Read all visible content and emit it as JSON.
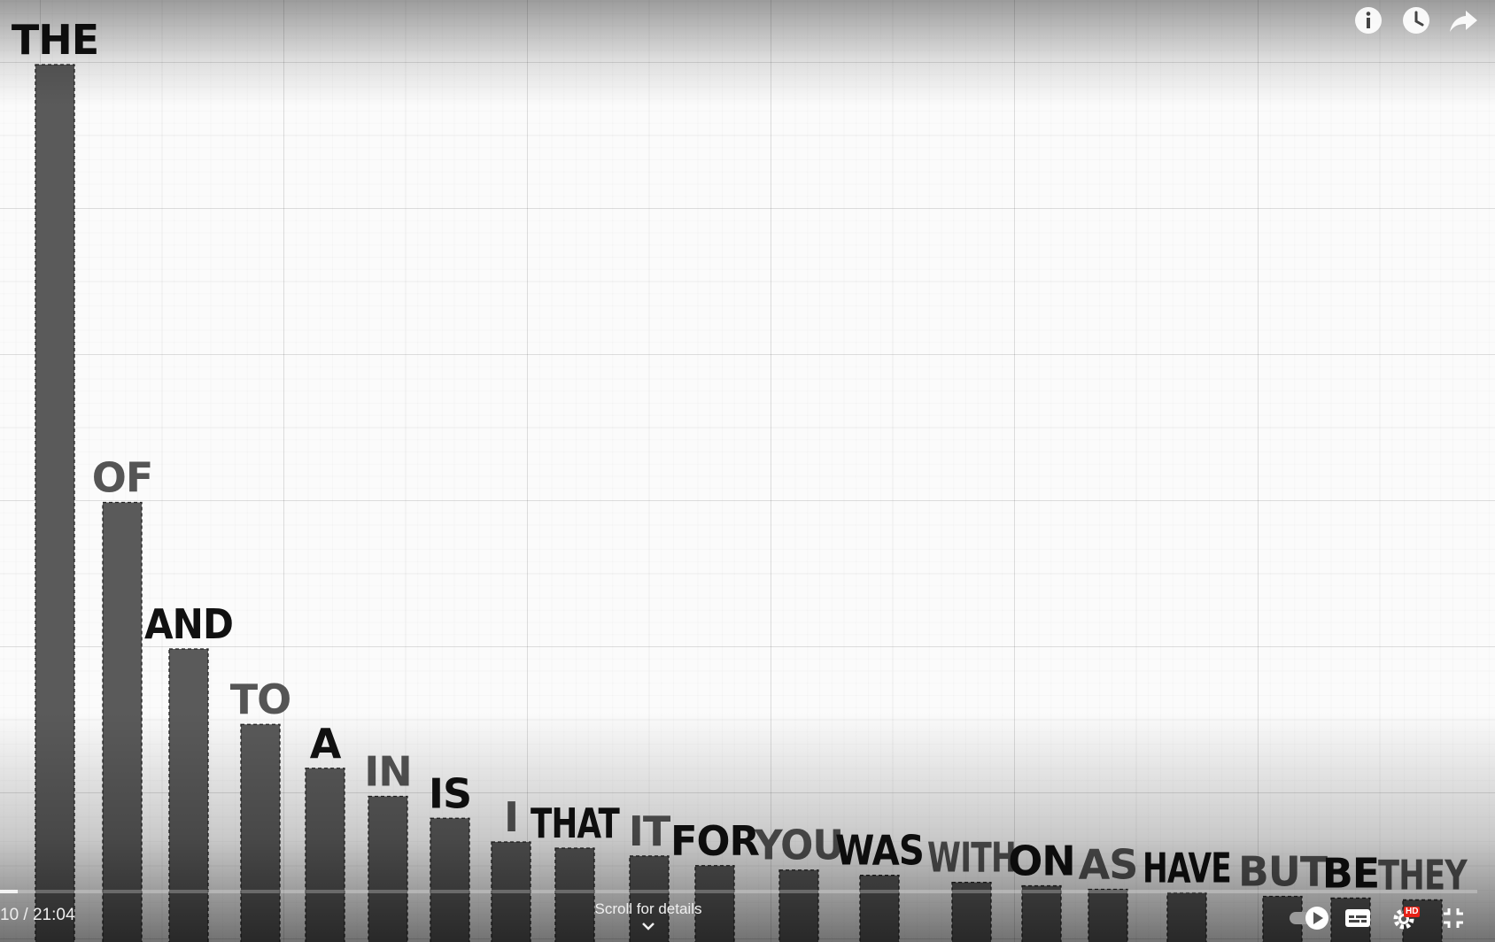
{
  "chart_data": {
    "type": "bar",
    "categories": [
      "THE",
      "OF",
      "AND",
      "TO",
      "A",
      "IN",
      "IS",
      "I",
      "THAT",
      "IT",
      "FOR",
      "YOU",
      "WAS",
      "WITH",
      "ON",
      "AS",
      "HAVE",
      "BUT",
      "BE",
      "THEY"
    ],
    "values": [
      100,
      50.1,
      33.4,
      24.8,
      19.8,
      16.6,
      14.1,
      11.4,
      10.7,
      9.8,
      8.7,
      8.2,
      7.6,
      6.8,
      6.4,
      6.0,
      5.6,
      5.2,
      5.0,
      4.8
    ],
    "label_colors": [
      "#111111",
      "#555555",
      "#111111",
      "#555555",
      "#111111",
      "#555555",
      "#111111",
      "#555555",
      "#111111",
      "#555555",
      "#111111",
      "#555555",
      "#111111",
      "#555555",
      "#111111",
      "#555555",
      "#111111",
      "#555555",
      "#111111",
      "#555555"
    ],
    "bar_color": "#5a5a5a",
    "bar_outline": "#222222",
    "title": "",
    "xlabel": "",
    "ylabel": "",
    "grid": true
  },
  "player": {
    "time_display": "10 / 21:04",
    "scroll_hint": "Scroll for details",
    "hd_badge": "HD",
    "progress_fraction": 0.012,
    "icons": {
      "info": "info-icon",
      "watch_later": "clock-icon",
      "share": "share-icon",
      "autoplay": "autoplay-toggle-icon",
      "captions": "captions-icon",
      "settings": "gear-icon",
      "exit_fullscreen": "exit-fullscreen-icon"
    }
  }
}
